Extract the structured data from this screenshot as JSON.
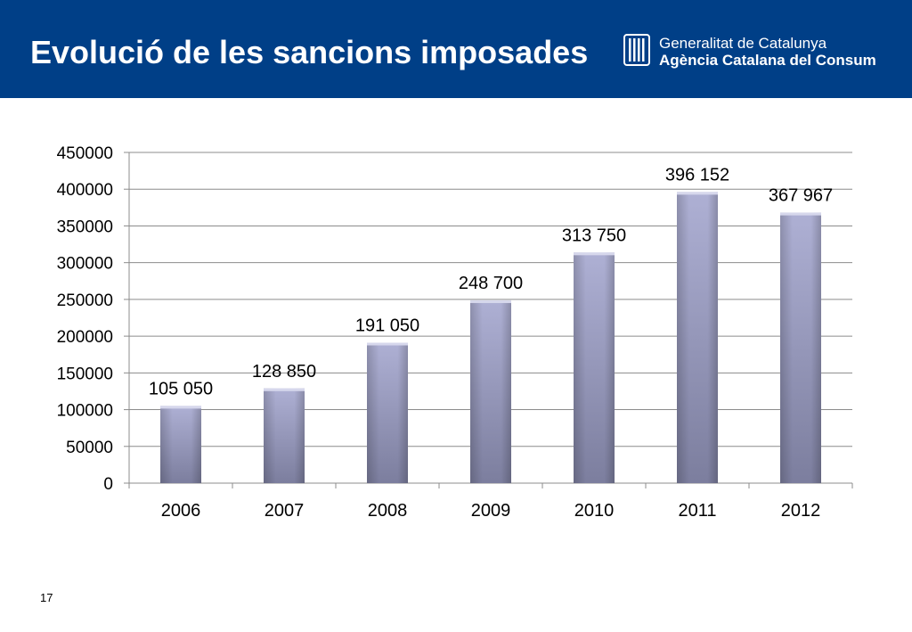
{
  "header": {
    "title": "Evolució de les sancions imposades",
    "logo_line1": "Generalitat de Catalunya",
    "logo_line2": "Agència Catalana del Consum",
    "background_color": "#003f87"
  },
  "chart_data": {
    "type": "bar",
    "categories": [
      "2006",
      "2007",
      "2008",
      "2009",
      "2010",
      "2011",
      "2012"
    ],
    "values": [
      105050,
      128850,
      191050,
      248700,
      313750,
      396152,
      367967
    ],
    "data_labels": [
      "105 050",
      "128 850",
      "191 050",
      "248 700",
      "313 750",
      "396 152",
      "367 967"
    ],
    "y_ticks": [
      "0",
      "50000",
      "100000",
      "150000",
      "200000",
      "250000",
      "300000",
      "350000",
      "400000",
      "450000"
    ],
    "ylim": [
      0,
      450000
    ],
    "grid": true,
    "bar_color": "#9a9cc0"
  },
  "footer": {
    "page_number": "17"
  }
}
